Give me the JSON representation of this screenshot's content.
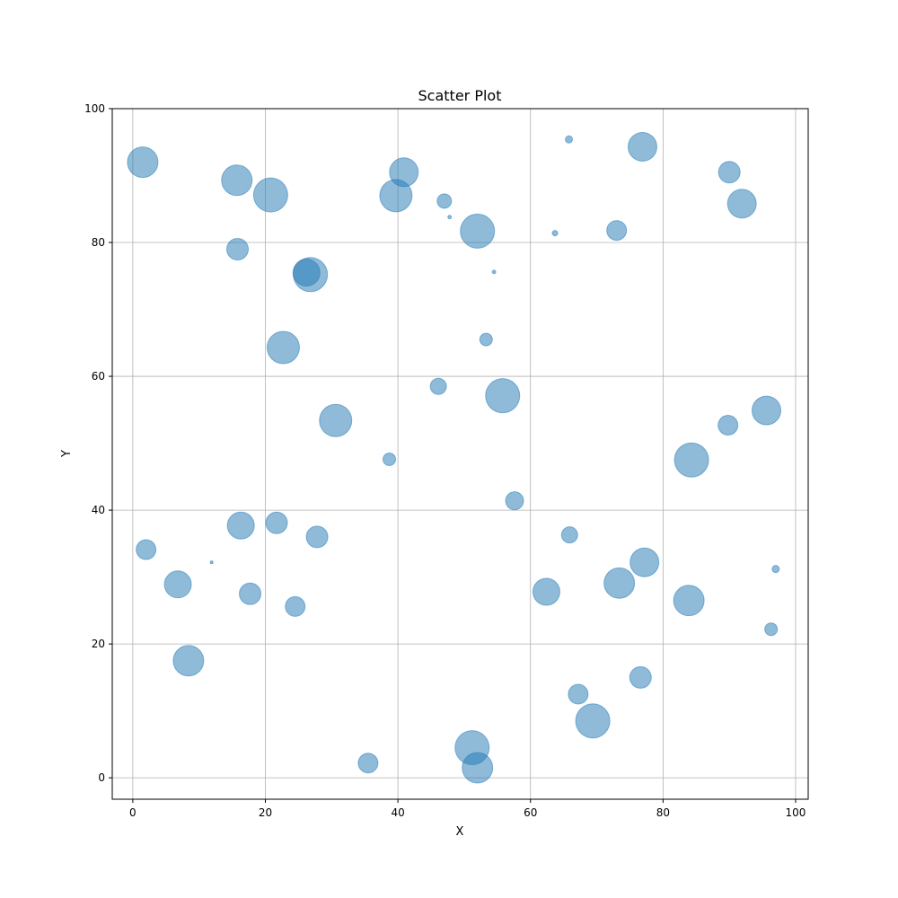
{
  "chart_data": {
    "type": "scatter",
    "title": "Scatter Plot",
    "xlabel": "X",
    "ylabel": "Y",
    "xlim": [
      -3.1,
      101.9
    ],
    "ylim": [
      -3.2,
      100
    ],
    "xticks": [
      0,
      20,
      40,
      60,
      80,
      100
    ],
    "yticks": [
      0,
      20,
      40,
      60,
      80,
      100
    ],
    "grid": true,
    "color": "#1f77b4",
    "alpha": 0.5,
    "points": [
      {
        "x": 1.5,
        "y": 92.0,
        "s": 599
      },
      {
        "x": 15.7,
        "y": 89.3,
        "s": 599
      },
      {
        "x": 20.8,
        "y": 87.1,
        "s": 749
      },
      {
        "x": 40.9,
        "y": 90.5,
        "s": 531
      },
      {
        "x": 39.7,
        "y": 87.0,
        "s": 672
      },
      {
        "x": 47.0,
        "y": 86.2,
        "s": 133
      },
      {
        "x": 47.8,
        "y": 83.8,
        "s": 8
      },
      {
        "x": 52.0,
        "y": 81.7,
        "s": 749
      },
      {
        "x": 65.8,
        "y": 95.4,
        "s": 33
      },
      {
        "x": 76.9,
        "y": 94.3,
        "s": 531
      },
      {
        "x": 90.0,
        "y": 90.5,
        "s": 299
      },
      {
        "x": 91.9,
        "y": 85.8,
        "s": 531
      },
      {
        "x": 63.7,
        "y": 81.4,
        "s": 19
      },
      {
        "x": 73.0,
        "y": 81.8,
        "s": 251
      },
      {
        "x": 15.8,
        "y": 79.0,
        "s": 299
      },
      {
        "x": 26.8,
        "y": 75.2,
        "s": 749
      },
      {
        "x": 26.2,
        "y": 75.5,
        "s": 467
      },
      {
        "x": 54.5,
        "y": 75.6,
        "s": 8
      },
      {
        "x": 22.7,
        "y": 64.3,
        "s": 672
      },
      {
        "x": 53.3,
        "y": 65.5,
        "s": 102
      },
      {
        "x": 46.1,
        "y": 58.5,
        "s": 168
      },
      {
        "x": 55.8,
        "y": 57.1,
        "s": 749
      },
      {
        "x": 30.6,
        "y": 53.4,
        "s": 672
      },
      {
        "x": 38.7,
        "y": 47.6,
        "s": 102
      },
      {
        "x": 84.3,
        "y": 47.5,
        "s": 749
      },
      {
        "x": 89.8,
        "y": 52.7,
        "s": 251
      },
      {
        "x": 95.6,
        "y": 54.9,
        "s": 531
      },
      {
        "x": 57.6,
        "y": 41.4,
        "s": 207
      },
      {
        "x": 16.3,
        "y": 37.7,
        "s": 467
      },
      {
        "x": 21.7,
        "y": 38.1,
        "s": 299
      },
      {
        "x": 27.8,
        "y": 36.0,
        "s": 299
      },
      {
        "x": 2.0,
        "y": 34.1,
        "s": 251
      },
      {
        "x": 11.9,
        "y": 32.2,
        "s": 5
      },
      {
        "x": 6.8,
        "y": 28.9,
        "s": 467
      },
      {
        "x": 17.7,
        "y": 27.5,
        "s": 299
      },
      {
        "x": 24.5,
        "y": 25.6,
        "s": 251
      },
      {
        "x": 65.9,
        "y": 36.3,
        "s": 168
      },
      {
        "x": 77.2,
        "y": 32.2,
        "s": 531
      },
      {
        "x": 73.4,
        "y": 29.1,
        "s": 599
      },
      {
        "x": 62.4,
        "y": 27.8,
        "s": 467
      },
      {
        "x": 83.9,
        "y": 26.5,
        "s": 599
      },
      {
        "x": 97.0,
        "y": 31.2,
        "s": 33
      },
      {
        "x": 96.3,
        "y": 22.2,
        "s": 102
      },
      {
        "x": 8.4,
        "y": 17.5,
        "s": 599
      },
      {
        "x": 76.6,
        "y": 15.0,
        "s": 299
      },
      {
        "x": 67.2,
        "y": 12.5,
        "s": 251
      },
      {
        "x": 69.4,
        "y": 8.5,
        "s": 749
      },
      {
        "x": 35.5,
        "y": 2.2,
        "s": 251
      },
      {
        "x": 51.2,
        "y": 4.5,
        "s": 749
      },
      {
        "x": 52.0,
        "y": 1.5,
        "s": 599
      }
    ]
  }
}
